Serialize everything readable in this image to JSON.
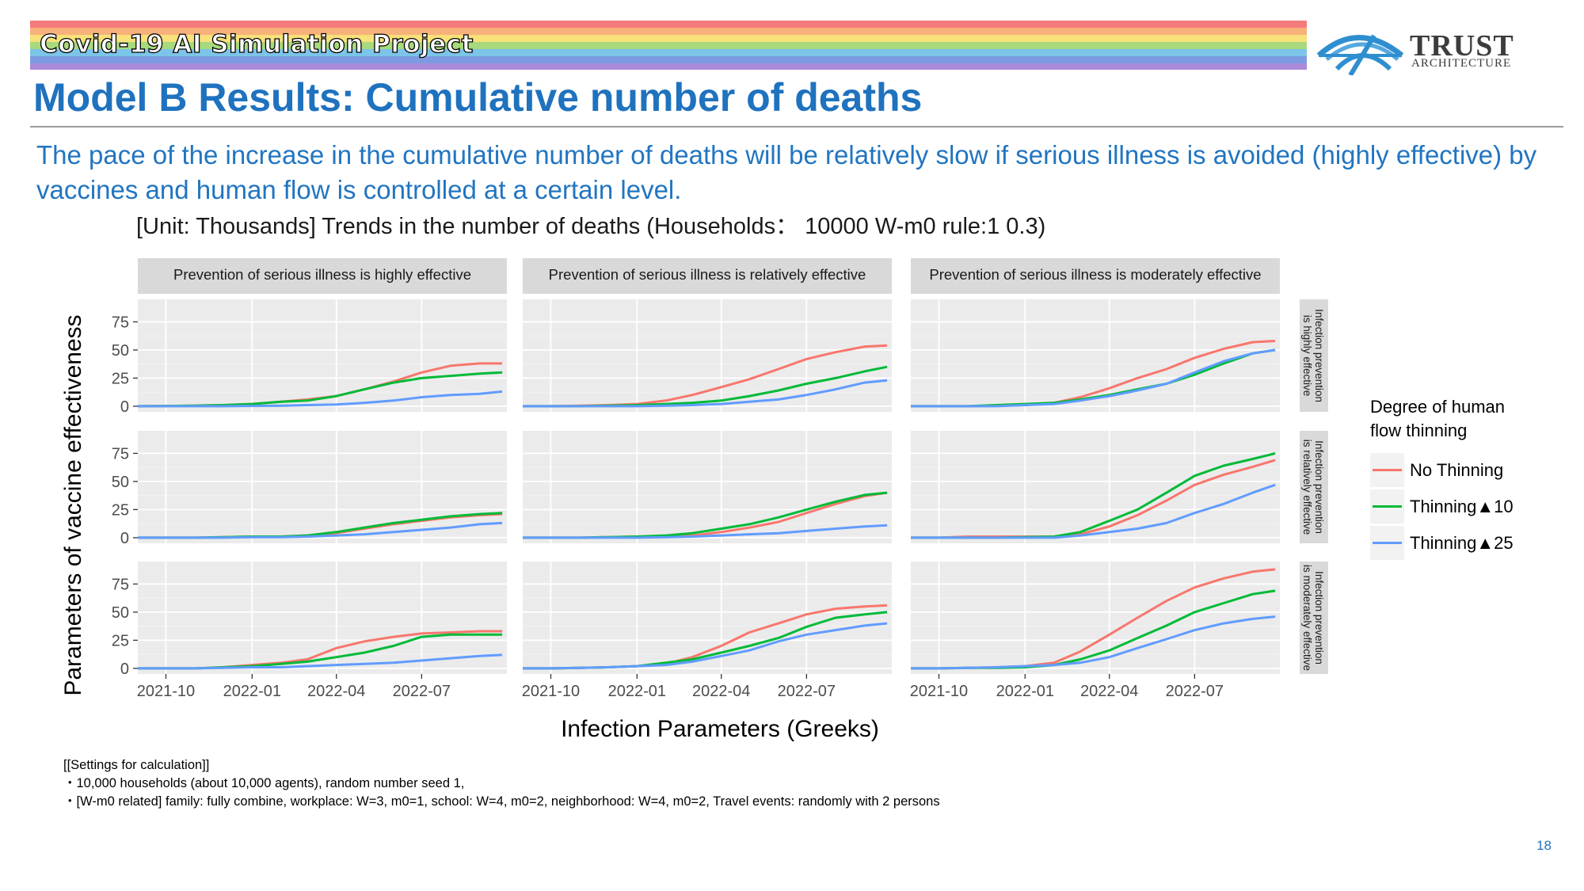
{
  "header": {
    "project": "Covid-19 AI Simulation Project",
    "title": "Model B Results: Cumulative number of deaths",
    "subtitle": "The pace of the increase in the cumulative number of deaths will be relatively slow if serious illness is avoided (highly effective) by vaccines and human flow is controlled at a certain level."
  },
  "logo": {
    "name": "TRUST",
    "sub": "ARCHITECTURE",
    "icon": "bridge-arc-icon"
  },
  "colors": {
    "accent": "#1f72be",
    "no_thinning": "#f8766d",
    "thinning_10": "#00ba38",
    "thinning_25": "#619cff"
  },
  "chart_data": {
    "type": "line",
    "title": "[Unit: Thousands] Trends in the number of deaths (Households： 10000 W-m0 rule:1 0.3)",
    "xlabel": "Infection Parameters (Greeks)",
    "ylabel": "Parameters of vaccine effectiveness",
    "x_range": [
      "2021-09-01",
      "2022-09-30"
    ],
    "x_ticks": [
      "2021-10",
      "2022-01",
      "2022-04",
      "2022-07"
    ],
    "y_range": [
      -5,
      95
    ],
    "y_ticks": [
      0,
      25,
      50,
      75
    ],
    "grid": true,
    "legend": {
      "title": "Degree of human flow thinning",
      "placement": "right",
      "entries": [
        "No Thinning",
        "Thinning▲10",
        "Thinning▲25"
      ]
    },
    "col_facets": [
      "Prevention of serious illness is highly effective",
      "Prevention of serious illness is relatively effective",
      "Prevention of serious illness is moderately effective"
    ],
    "row_facets": [
      [
        "Infection prevention",
        "is highly effective"
      ],
      [
        "Infection prevention",
        "is relatively effective"
      ],
      [
        "Infection prevention",
        "is moderately effective"
      ]
    ],
    "x": [
      "2021-09-01",
      "2021-10-01",
      "2021-11-01",
      "2021-12-01",
      "2022-01-01",
      "2022-02-01",
      "2022-03-01",
      "2022-04-01",
      "2022-05-01",
      "2022-06-01",
      "2022-07-01",
      "2022-08-01",
      "2022-09-01",
      "2022-09-25"
    ],
    "panels": [
      {
        "row": 0,
        "col": 0,
        "series": [
          {
            "name": "No Thinning",
            "values": [
              0,
              0.2,
              0.5,
              1,
              2,
              4,
              6,
              9,
              15,
              22,
              30,
              36,
              38,
              38
            ]
          },
          {
            "name": "Thinning▲10",
            "values": [
              0,
              0.2,
              0.5,
              1,
              2,
              4,
              5,
              9,
              15,
              21,
              25,
              27,
              29,
              30
            ]
          },
          {
            "name": "Thinning▲25",
            "values": [
              0,
              0,
              0,
              0,
              0.3,
              0.5,
              1,
              1.5,
              3,
              5,
              8,
              10,
              11,
              13
            ]
          }
        ]
      },
      {
        "row": 0,
        "col": 1,
        "series": [
          {
            "name": "No Thinning",
            "values": [
              0,
              0,
              0.5,
              1,
              2,
              5,
              10,
              17,
              24,
              33,
              42,
              48,
              53,
              54
            ]
          },
          {
            "name": "Thinning▲10",
            "values": [
              0,
              0,
              0,
              0.5,
              1,
              2,
              3,
              5,
              9,
              14,
              20,
              25,
              31,
              35
            ]
          },
          {
            "name": "Thinning▲25",
            "values": [
              0,
              0,
              0,
              0,
              0,
              0.5,
              1,
              2,
              4,
              6,
              10,
              15,
              21,
              23
            ]
          }
        ]
      },
      {
        "row": 0,
        "col": 2,
        "series": [
          {
            "name": "No Thinning",
            "values": [
              0,
              0,
              0,
              0.5,
              1,
              3,
              8,
              16,
              25,
              33,
              43,
              51,
              57,
              58
            ]
          },
          {
            "name": "Thinning▲10",
            "values": [
              0,
              0,
              0,
              1,
              2,
              3,
              6,
              10,
              15,
              20,
              28,
              38,
              47,
              50
            ]
          },
          {
            "name": "Thinning▲25",
            "values": [
              0,
              0,
              0,
              0,
              1,
              2,
              5,
              9,
              14,
              20,
              30,
              40,
              47,
              50
            ]
          }
        ]
      },
      {
        "row": 1,
        "col": 0,
        "series": [
          {
            "name": "No Thinning",
            "values": [
              0,
              0,
              0,
              0.5,
              1,
              1,
              2,
              4,
              8,
              12,
              15,
              18,
              20,
              21
            ]
          },
          {
            "name": "Thinning▲10",
            "values": [
              0,
              0,
              0,
              0.5,
              1,
              1,
              2,
              5,
              9,
              13,
              16,
              19,
              21,
              22
            ]
          },
          {
            "name": "Thinning▲25",
            "values": [
              0,
              0,
              0,
              0,
              0.5,
              0.5,
              1,
              2,
              3,
              5,
              7,
              9,
              12,
              13
            ]
          }
        ]
      },
      {
        "row": 1,
        "col": 1,
        "series": [
          {
            "name": "No Thinning",
            "values": [
              0,
              0,
              0,
              0.5,
              1,
              1,
              2,
              5,
              9,
              14,
              22,
              30,
              37,
              40
            ]
          },
          {
            "name": "Thinning▲10",
            "values": [
              0,
              0,
              0,
              0.5,
              1,
              2,
              4,
              8,
              12,
              18,
              25,
              32,
              38,
              40
            ]
          },
          {
            "name": "Thinning▲25",
            "values": [
              0,
              0,
              0,
              0,
              0,
              0.5,
              1,
              2,
              3,
              4,
              6,
              8,
              10,
              11
            ]
          }
        ]
      },
      {
        "row": 1,
        "col": 2,
        "series": [
          {
            "name": "No Thinning",
            "values": [
              0,
              0,
              1,
              1,
              1,
              1,
              3,
              10,
              20,
              33,
              47,
              56,
              63,
              69
            ]
          },
          {
            "name": "Thinning▲10",
            "values": [
              0,
              0,
              0,
              0,
              0.5,
              1,
              5,
              15,
              25,
              40,
              55,
              64,
              70,
              75
            ]
          },
          {
            "name": "Thinning▲25",
            "values": [
              0,
              0,
              0,
              0,
              0,
              0,
              2,
              5,
              8,
              13,
              22,
              30,
              40,
              47
            ]
          }
        ]
      },
      {
        "row": 2,
        "col": 0,
        "series": [
          {
            "name": "No Thinning",
            "values": [
              0,
              0,
              0,
              1,
              3,
              5,
              8,
              18,
              24,
              28,
              31,
              32,
              33,
              33
            ]
          },
          {
            "name": "Thinning▲10",
            "values": [
              0,
              0,
              0,
              1,
              2,
              4,
              6,
              10,
              14,
              20,
              28,
              30,
              30,
              30
            ]
          },
          {
            "name": "Thinning▲25",
            "values": [
              0,
              0,
              0,
              0.5,
              1,
              1,
              2,
              3,
              4,
              5,
              7,
              9,
              11,
              12
            ]
          }
        ]
      },
      {
        "row": 2,
        "col": 1,
        "series": [
          {
            "name": "No Thinning",
            "values": [
              0,
              0,
              0.5,
              1,
              2,
              4,
              10,
              20,
              32,
              40,
              48,
              53,
              55,
              56
            ]
          },
          {
            "name": "Thinning▲10",
            "values": [
              0,
              0,
              0.5,
              1,
              2,
              5,
              8,
              14,
              20,
              27,
              37,
              45,
              48,
              50
            ]
          },
          {
            "name": "Thinning▲25",
            "values": [
              0,
              0,
              0.5,
              1,
              2,
              3,
              6,
              11,
              16,
              24,
              30,
              34,
              38,
              40
            ]
          }
        ]
      },
      {
        "row": 2,
        "col": 2,
        "series": [
          {
            "name": "No Thinning",
            "values": [
              0,
              0,
              0.5,
              1,
              2,
              5,
              15,
              30,
              45,
              60,
              72,
              80,
              86,
              88
            ]
          },
          {
            "name": "Thinning▲10",
            "values": [
              0,
              0,
              0.5,
              0.5,
              1,
              3,
              8,
              16,
              27,
              38,
              50,
              58,
              66,
              69
            ]
          },
          {
            "name": "Thinning▲25",
            "values": [
              0,
              0,
              0.5,
              1,
              2,
              3,
              5,
              10,
              18,
              26,
              34,
              40,
              44,
              46
            ]
          }
        ]
      }
    ]
  },
  "settings": {
    "heading": "[[Settings for calculation]]",
    "line1": "・10,000 households (about 10,000 agents), random number seed 1,",
    "line2": "・[W-m0 related] family: fully combine, workplace: W=3, m0=1, school: W=4, m0=2, neighborhood: W=4, m0=2, Travel events: randomly with 2 persons"
  },
  "page_number": "18"
}
